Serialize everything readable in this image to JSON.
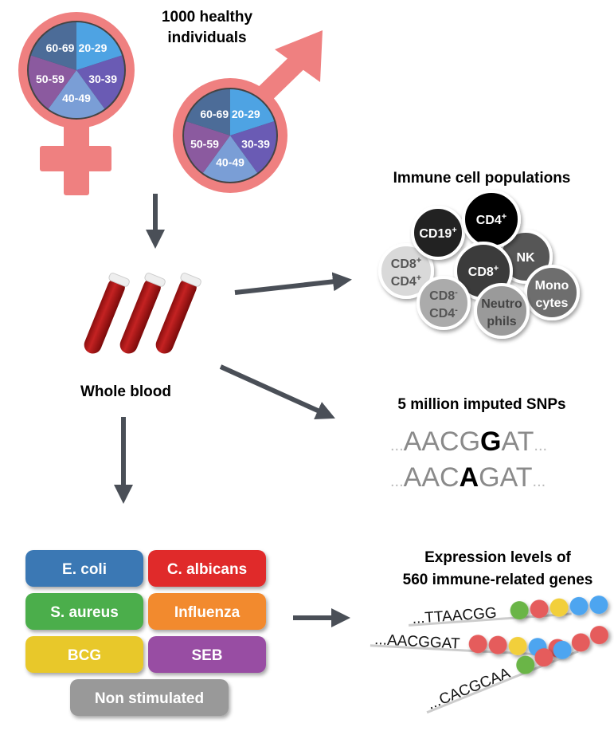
{
  "cohort": {
    "title_line1": "1000 healthy",
    "title_line2": "individuals",
    "age_groups": [
      "20-29",
      "30-39",
      "40-49",
      "50-59",
      "60-69"
    ],
    "age_colors": [
      "#4ea3e3",
      "#6a5bb4",
      "#7a9ed6",
      "#8b5a9f",
      "#4c6c98"
    ],
    "symbol_color": "#ef8080"
  },
  "blood": {
    "label": "Whole blood"
  },
  "immune": {
    "title": "Immune cell populations",
    "cells": [
      {
        "line1": "CD8",
        "sup1": "+",
        "line2": "CD4",
        "sup2": "+",
        "fill": "#d9d9d9",
        "text": "#555555"
      },
      {
        "line1": "CD19",
        "sup1": "+",
        "fill": "#232323",
        "text": "#ffffff"
      },
      {
        "line1": "NK",
        "fill": "#575757",
        "text": "#ffffff"
      },
      {
        "line1": "CD4",
        "sup1": "+",
        "fill": "#000000",
        "text": "#ffffff"
      },
      {
        "line1": "CD8",
        "sup1": "+",
        "fill": "#3b3b3b",
        "text": "#ffffff"
      },
      {
        "line1": "Mono",
        "line2": "cytes",
        "fill": "#6e6e6e",
        "text": "#ffffff"
      },
      {
        "line1": "CD8",
        "sup1": "-",
        "line2": "CD4",
        "sup2": "-",
        "fill": "#ababab",
        "text": "#555555"
      },
      {
        "line1": "Neutro",
        "line2": "phils",
        "fill": "#9a9a9a",
        "text": "#444444"
      }
    ]
  },
  "snps": {
    "title": "5 million imputed SNPs",
    "row1": {
      "pre": "AACG",
      "snp": "G",
      "post": "AT"
    },
    "row2": {
      "pre": "AAC",
      "snp": "A",
      "post": "GAT"
    },
    "ellipsis": "..."
  },
  "stimuli": {
    "buttons": [
      {
        "label": "E. coli",
        "color": "#3a78b4"
      },
      {
        "label": "C. albicans",
        "color": "#e02a2a"
      },
      {
        "label": "S. aureus",
        "color": "#4cae4c"
      },
      {
        "label": "Influenza",
        "color": "#f28a2e"
      },
      {
        "label": "BCG",
        "color": "#e8c82c"
      },
      {
        "label": "SEB",
        "color": "#984ea3"
      },
      {
        "label": "Non stimulated",
        "color": "#999999"
      }
    ]
  },
  "expression": {
    "title_line1": "Expression levels of",
    "title_line2": "560 immune-related genes",
    "rows": [
      {
        "seq": "...TTAACGG",
        "beads": [
          "green",
          "red",
          "yellow",
          "blue",
          "blue"
        ]
      },
      {
        "seq": "...AACGGAT",
        "beads": [
          "red",
          "red",
          "yellow",
          "blue",
          "red"
        ]
      },
      {
        "seq": "...CACGCAA",
        "beads": [
          "green",
          "red",
          "blue",
          "red",
          "red"
        ]
      }
    ],
    "bead_colors": {
      "green": "#6ab547",
      "red": "#e55b5b",
      "yellow": "#f2cf3b",
      "blue": "#4ea5f0"
    }
  },
  "arrow_color": "#4a4f57"
}
